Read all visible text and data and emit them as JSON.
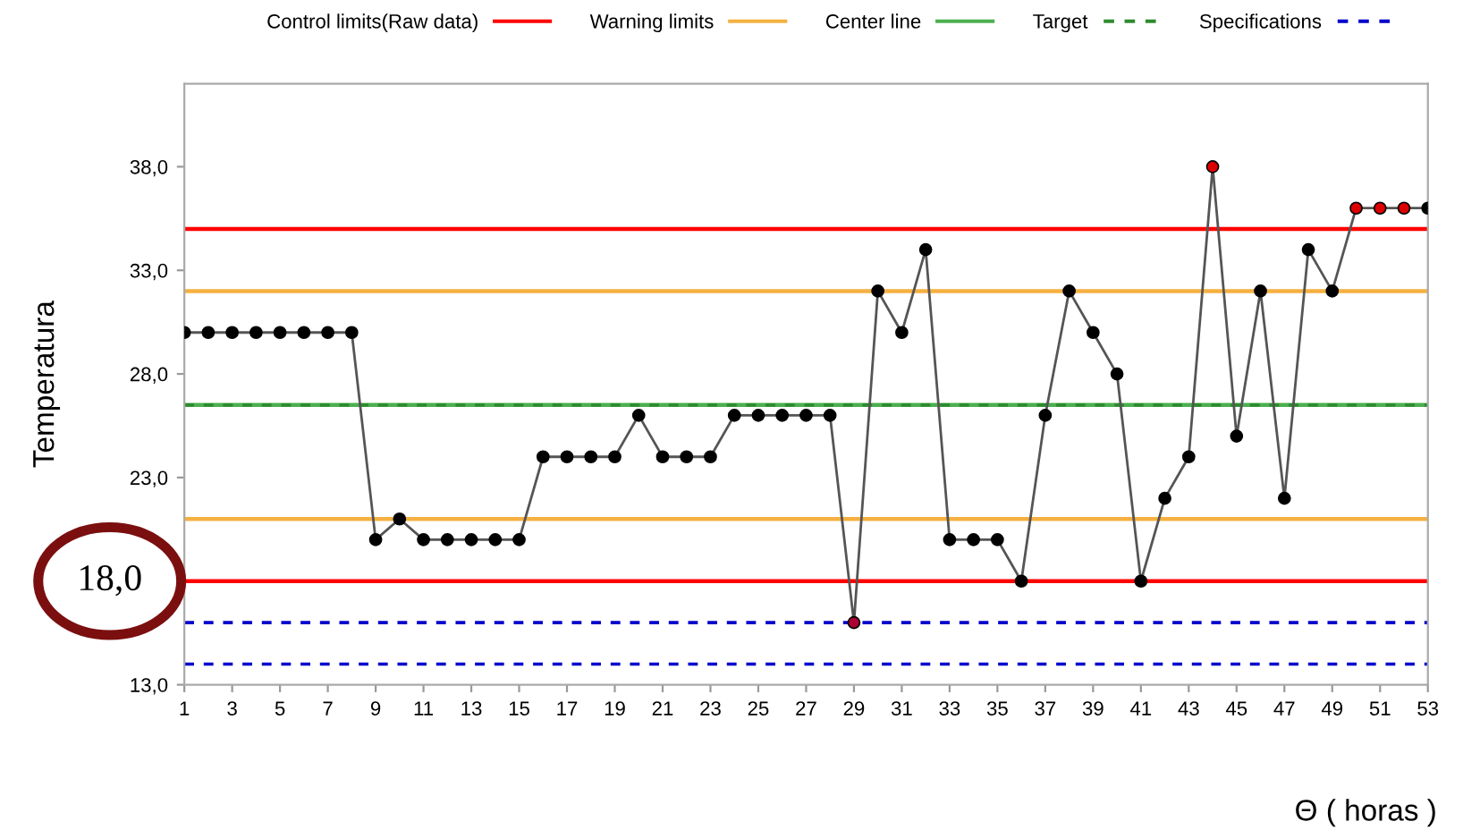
{
  "chart_data": {
    "type": "line",
    "xlabel": "Θ ( horas )",
    "ylabel": "Temperatura",
    "x": [
      1,
      2,
      3,
      4,
      5,
      6,
      7,
      8,
      9,
      10,
      11,
      12,
      13,
      14,
      15,
      16,
      17,
      18,
      19,
      20,
      21,
      22,
      23,
      24,
      25,
      26,
      27,
      28,
      29,
      30,
      31,
      32,
      33,
      34,
      35,
      36,
      37,
      38,
      39,
      40,
      41,
      42,
      43,
      44,
      45,
      46,
      47,
      48,
      49,
      50,
      51,
      52,
      53
    ],
    "series": [
      {
        "color": "#555555",
        "values": [
          30,
          30,
          30,
          30,
          30,
          30,
          30,
          30,
          20,
          21,
          20,
          20,
          20,
          20,
          20,
          24,
          24,
          24,
          24,
          26,
          24,
          24,
          24,
          26,
          26,
          26,
          26,
          26,
          16,
          32,
          30,
          34,
          20,
          20,
          20,
          18,
          26,
          32,
          30,
          28,
          18,
          22,
          24,
          38,
          25,
          32,
          22,
          34,
          32,
          36,
          36,
          36,
          36
        ],
        "colors": [
          "#000000",
          "#000000",
          "#000000",
          "#000000",
          "#000000",
          "#000000",
          "#000000",
          "#000000",
          "#000000",
          "#000000",
          "#000000",
          "#000000",
          "#000000",
          "#000000",
          "#000000",
          "#000000",
          "#000000",
          "#000000",
          "#000000",
          "#000000",
          "#000000",
          "#000000",
          "#000000",
          "#000000",
          "#000000",
          "#000000",
          "#000000",
          "#000000",
          "#aa0033",
          "#000000",
          "#000000",
          "#000000",
          "#000000",
          "#000000",
          "#000000",
          "#000000",
          "#000000",
          "#000000",
          "#000000",
          "#000000",
          "#000000",
          "#000000",
          "#000000",
          "#dd0000",
          "#000000",
          "#000000",
          "#000000",
          "#000000",
          "#000000",
          "#dd0000",
          "#dd0000",
          "#dd0000",
          "#000000"
        ]
      }
    ],
    "ref_lines": [
      {
        "axis": "y",
        "value": 35,
        "label": "Control limits(Raw data)",
        "color": "#ff0000",
        "line_style": "solid"
      },
      {
        "axis": "y",
        "value": 18,
        "color": "#ff0000",
        "line_style": "solid"
      },
      {
        "axis": "y",
        "value": 32,
        "label": "Warning limits",
        "color": "#f5b041",
        "line_style": "solid"
      },
      {
        "axis": "y",
        "value": 21,
        "color": "#f5b041",
        "line_style": "solid"
      },
      {
        "axis": "y",
        "value": 26.5,
        "label": "Center line",
        "color": "#4caf50",
        "line_style": "solid"
      },
      {
        "axis": "y",
        "value": 26.5,
        "label": "Target",
        "color": "#2e8b2e",
        "line_style": "dashed"
      },
      {
        "axis": "y",
        "value": 16,
        "label": "Specifications",
        "color": "#0000cc",
        "line_style": "dashed"
      },
      {
        "axis": "y",
        "value": 14,
        "color": "#0000cc",
        "line_style": "dashed"
      }
    ],
    "annotations": [
      "18,0"
    ],
    "xlim": [
      1,
      53
    ],
    "xticks": [
      1,
      3,
      5,
      7,
      9,
      11,
      13,
      15,
      17,
      19,
      21,
      23,
      25,
      27,
      29,
      31,
      33,
      35,
      37,
      39,
      41,
      43,
      45,
      47,
      49,
      51,
      53
    ],
    "ylim": [
      13,
      42
    ],
    "yticks": [
      {
        "value": 13,
        "label": "13,0"
      },
      {
        "value": 18,
        "label": null
      },
      {
        "value": 23,
        "label": "23,0"
      },
      {
        "value": 28,
        "label": "28,0"
      },
      {
        "value": 33,
        "label": "33,0"
      },
      {
        "value": 38,
        "label": "38,0"
      }
    ],
    "marker": "circle",
    "line_style": "solid",
    "grid": false,
    "legend": "top"
  }
}
